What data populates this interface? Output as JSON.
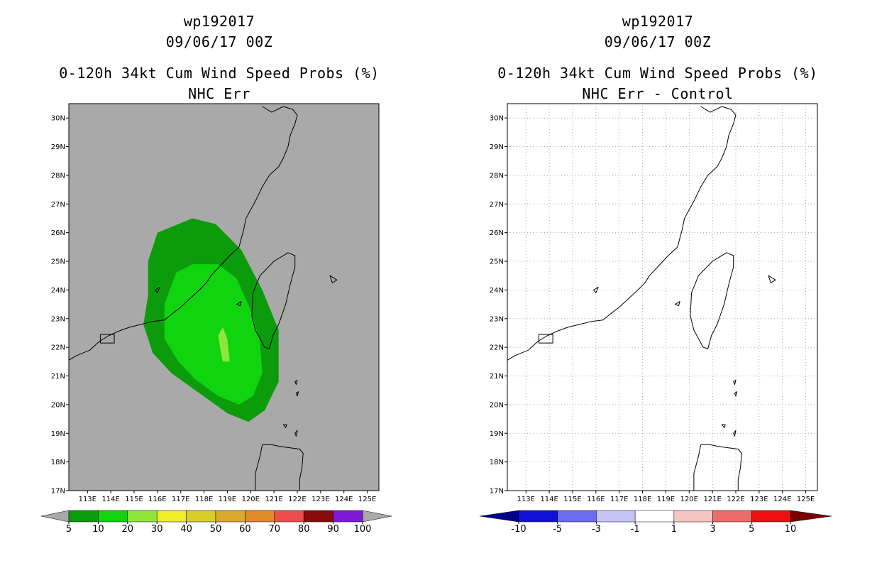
{
  "chart_data": [
    {
      "type": "heatmap",
      "storm_id": "wp192017",
      "date": "09/06/17 00Z",
      "title": "0-120h 34kt Cum Wind Speed Probs (%)",
      "subtitle": "NHC Err",
      "lon_range": [
        112.2,
        125.5
      ],
      "lat_range": [
        17,
        30.5
      ],
      "x_ticks": [
        "113E",
        "114E",
        "115E",
        "116E",
        "117E",
        "118E",
        "119E",
        "120E",
        "121E",
        "122E",
        "123E",
        "124E",
        "125E"
      ],
      "y_ticks": [
        "17N",
        "18N",
        "19N",
        "20N",
        "21N",
        "22N",
        "23N",
        "24N",
        "25N",
        "26N",
        "27N",
        "28N",
        "29N",
        "30N"
      ],
      "grid": false,
      "background_color": "#a9a9a9",
      "contours": [
        {
          "level": "5-10",
          "color": "#0b9b0b",
          "points": [
            [
              115.4,
              22.8
            ],
            [
              115.6,
              23.8
            ],
            [
              115.6,
              25.0
            ],
            [
              116.0,
              26.0
            ],
            [
              117.5,
              26.5
            ],
            [
              118.5,
              26.3
            ],
            [
              119.6,
              25.4
            ],
            [
              120.5,
              24.0
            ],
            [
              121.2,
              22.6
            ],
            [
              121.2,
              20.8
            ],
            [
              120.6,
              19.8
            ],
            [
              119.9,
              19.4
            ],
            [
              119.0,
              19.7
            ],
            [
              117.8,
              20.4
            ],
            [
              116.6,
              21.1
            ],
            [
              115.8,
              21.8
            ]
          ]
        },
        {
          "level": "10-20",
          "color": "#0fd40f",
          "points": [
            [
              116.3,
              22.3
            ],
            [
              116.3,
              23.5
            ],
            [
              116.8,
              24.6
            ],
            [
              117.5,
              24.9
            ],
            [
              118.6,
              24.9
            ],
            [
              119.4,
              24.4
            ],
            [
              120.0,
              23.3
            ],
            [
              120.4,
              22.2
            ],
            [
              120.5,
              21.1
            ],
            [
              120.1,
              20.3
            ],
            [
              119.5,
              20.0
            ],
            [
              118.6,
              20.3
            ],
            [
              117.6,
              20.9
            ],
            [
              116.9,
              21.5
            ]
          ]
        },
        {
          "level": "20-30",
          "color": "#8ee63a",
          "points": [
            [
              118.8,
              22.7
            ],
            [
              118.6,
              22.4
            ],
            [
              118.8,
              21.5
            ],
            [
              119.1,
              21.5
            ],
            [
              119.0,
              22.3
            ]
          ]
        }
      ],
      "colorbar": {
        "labels": [
          "5",
          "10",
          "20",
          "30",
          "40",
          "50",
          "60",
          "70",
          "80",
          "90",
          "100"
        ],
        "colors": [
          "#0b9b0b",
          "#0fd40f",
          "#8ee63a",
          "#eded2a",
          "#d9cd2a",
          "#dba830",
          "#e08a2a",
          "#ee4d4d",
          "#8a0b0b",
          "#7c1bd8"
        ],
        "under_color": "#a9a9a9",
        "over_color": "#a9a9a9"
      }
    },
    {
      "type": "heatmap",
      "storm_id": "wp192017",
      "date": "09/06/17 00Z",
      "title": "0-120h 34kt Cum Wind Speed Probs (%)",
      "subtitle": "NHC Err - Control",
      "lon_range": [
        112.2,
        125.5
      ],
      "lat_range": [
        17,
        30.5
      ],
      "x_ticks": [
        "113E",
        "114E",
        "115E",
        "116E",
        "117E",
        "118E",
        "119E",
        "120E",
        "121E",
        "122E",
        "123E",
        "124E",
        "125E"
      ],
      "y_ticks": [
        "17N",
        "18N",
        "19N",
        "20N",
        "21N",
        "22N",
        "23N",
        "24N",
        "25N",
        "26N",
        "27N",
        "28N",
        "29N",
        "30N"
      ],
      "grid": true,
      "background_color": "#ffffff",
      "contours": [],
      "colorbar": {
        "labels": [
          "-10",
          "-5",
          "-3",
          "-1",
          "1",
          "3",
          "5",
          "10"
        ],
        "colors": [
          "#1010d8",
          "#6b6bee",
          "#c4c4f6",
          "#ffffff",
          "#f7c4c4",
          "#ee6b6b",
          "#ee1010"
        ],
        "under_color": "#00008b",
        "over_color": "#7a0000"
      }
    }
  ],
  "coastline": {
    "mainland": [
      [
        112.2,
        21.55
      ],
      [
        112.5,
        21.7
      ],
      [
        112.8,
        21.8
      ],
      [
        113.1,
        21.9
      ],
      [
        113.5,
        22.2
      ],
      [
        113.9,
        22.4
      ],
      [
        114.3,
        22.55
      ],
      [
        114.8,
        22.7
      ],
      [
        115.3,
        22.8
      ],
      [
        115.8,
        22.9
      ],
      [
        116.3,
        22.95
      ],
      [
        116.6,
        23.15
      ],
      [
        117.0,
        23.4
      ],
      [
        117.4,
        23.7
      ],
      [
        117.8,
        24.0
      ],
      [
        118.1,
        24.25
      ],
      [
        118.3,
        24.5
      ],
      [
        118.7,
        24.85
      ],
      [
        119.1,
        25.2
      ],
      [
        119.5,
        25.5
      ],
      [
        119.6,
        25.8
      ],
      [
        119.7,
        26.1
      ],
      [
        119.8,
        26.5
      ],
      [
        120.0,
        26.8
      ],
      [
        120.2,
        27.1
      ],
      [
        120.5,
        27.6
      ],
      [
        120.8,
        28.0
      ],
      [
        121.2,
        28.3
      ],
      [
        121.4,
        28.6
      ],
      [
        121.6,
        29.0
      ],
      [
        121.7,
        29.4
      ],
      [
        121.9,
        29.8
      ],
      [
        122.0,
        30.1
      ],
      [
        121.8,
        30.3
      ],
      [
        121.4,
        30.4
      ],
      [
        120.9,
        30.2
      ],
      [
        120.5,
        30.4
      ]
    ],
    "taiwan": [
      [
        121.9,
        25.2
      ],
      [
        121.6,
        25.3
      ],
      [
        121.0,
        25.0
      ],
      [
        120.4,
        24.5
      ],
      [
        120.1,
        23.9
      ],
      [
        120.05,
        23.1
      ],
      [
        120.2,
        22.6
      ],
      [
        120.6,
        22.0
      ],
      [
        120.8,
        21.95
      ],
      [
        120.95,
        22.4
      ],
      [
        121.2,
        22.8
      ],
      [
        121.5,
        23.5
      ],
      [
        121.7,
        24.2
      ],
      [
        121.9,
        24.8
      ]
    ],
    "luzon": [
      [
        120.5,
        18.6
      ],
      [
        120.9,
        18.6
      ],
      [
        121.2,
        18.55
      ],
      [
        121.6,
        18.5
      ],
      [
        122.1,
        18.45
      ],
      [
        122.25,
        18.3
      ],
      [
        122.2,
        17.8
      ],
      [
        122.1,
        17.4
      ],
      [
        122.1,
        17.0
      ]
    ],
    "luzon_west": [
      [
        120.2,
        17.0
      ],
      [
        120.2,
        17.6
      ],
      [
        120.4,
        18.2
      ],
      [
        120.5,
        18.6
      ]
    ],
    "islands": [
      [
        [
          113.55,
          22.15
        ],
        [
          114.15,
          22.15
        ],
        [
          114.15,
          22.45
        ],
        [
          113.55,
          22.45
        ]
      ],
      [
        [
          121.9,
          20.8
        ],
        [
          122.0,
          20.85
        ],
        [
          121.95,
          20.7
        ]
      ],
      [
        [
          121.95,
          20.4
        ],
        [
          122.05,
          20.45
        ],
        [
          122.0,
          20.3
        ]
      ],
      [
        [
          121.4,
          19.3
        ],
        [
          121.55,
          19.3
        ],
        [
          121.5,
          19.2
        ]
      ],
      [
        [
          121.9,
          19.0
        ],
        [
          122.0,
          19.1
        ],
        [
          121.95,
          18.9
        ]
      ],
      [
        [
          123.4,
          24.5
        ],
        [
          123.7,
          24.35
        ],
        [
          123.5,
          24.25
        ]
      ],
      [
        [
          119.4,
          23.5
        ],
        [
          119.6,
          23.6
        ],
        [
          119.55,
          23.45
        ]
      ],
      [
        [
          115.9,
          24.0
        ],
        [
          116.1,
          24.1
        ],
        [
          116.0,
          23.9
        ]
      ]
    ]
  }
}
